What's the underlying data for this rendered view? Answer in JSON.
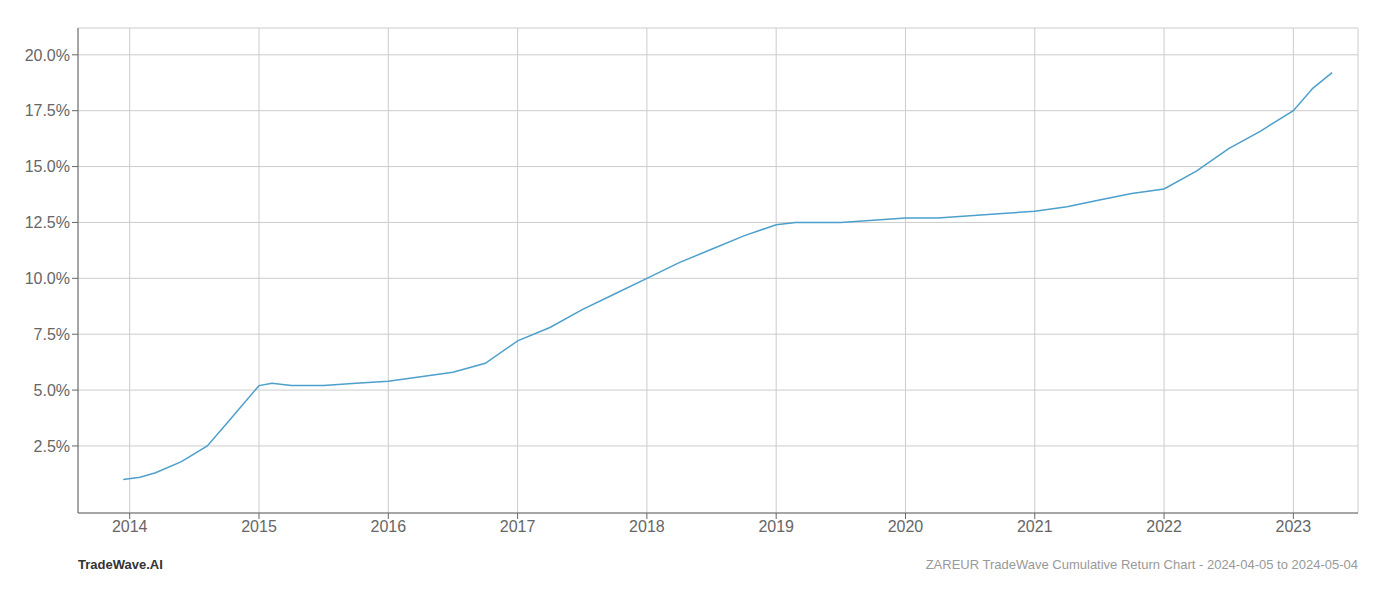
{
  "chart_data": {
    "type": "line",
    "annotations": [
      "TradeWave.AI",
      "ZAREUR TradeWave Cumulative Return Chart - 2024-04-05 to 2024-05-04"
    ],
    "x": [
      2013.95,
      2014.08,
      2014.2,
      2014.4,
      2014.6,
      2014.75,
      2015.0,
      2015.1,
      2015.25,
      2015.5,
      2015.75,
      2016.0,
      2016.25,
      2016.5,
      2016.75,
      2017.0,
      2017.25,
      2017.5,
      2017.75,
      2018.0,
      2018.25,
      2018.5,
      2018.75,
      2019.0,
      2019.15,
      2019.25,
      2019.5,
      2019.75,
      2020.0,
      2020.25,
      2020.5,
      2020.75,
      2021.0,
      2021.25,
      2021.5,
      2021.75,
      2022.0,
      2022.25,
      2022.5,
      2022.75,
      2023.0,
      2023.15,
      2023.3
    ],
    "values": [
      0.01,
      0.011,
      0.013,
      0.018,
      0.025,
      0.035,
      0.052,
      0.053,
      0.052,
      0.052,
      0.053,
      0.054,
      0.056,
      0.058,
      0.062,
      0.072,
      0.078,
      0.086,
      0.093,
      0.1,
      0.107,
      0.113,
      0.119,
      0.124,
      0.125,
      0.125,
      0.125,
      0.126,
      0.127,
      0.127,
      0.128,
      0.129,
      0.13,
      0.132,
      0.135,
      0.138,
      0.14,
      0.148,
      0.158,
      0.166,
      0.175,
      0.185,
      0.192
    ],
    "color": "#4d9fcc",
    "xlim": [
      2013.6,
      2023.5
    ],
    "ylim": [
      -0.005,
      0.212
    ],
    "xticks": [
      2014,
      2015,
      2016,
      2017,
      2018,
      2019,
      2020,
      2021,
      2022,
      2023
    ],
    "yticks": [
      {
        "value": 0.025,
        "label": "2.5%"
      },
      {
        "value": 0.05,
        "label": "5.0%"
      },
      {
        "value": 0.075,
        "label": "7.5%"
      },
      {
        "value": 0.1,
        "label": "10.0%"
      },
      {
        "value": 0.125,
        "label": "12.5%"
      },
      {
        "value": 0.15,
        "label": "15.0%"
      },
      {
        "value": 0.175,
        "label": "17.5%"
      },
      {
        "value": 0.2,
        "label": "20.0%"
      }
    ],
    "grid": true
  }
}
